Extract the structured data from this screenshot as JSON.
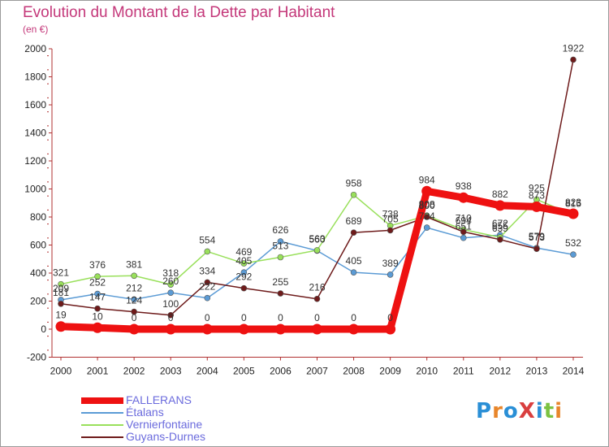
{
  "header": {
    "title": "Evolution du Montant de la Dette par Habitant",
    "unit": "(en €)"
  },
  "logo": {
    "text": "ProXiti",
    "colors": [
      "#2a8fd6",
      "#e8862b",
      "#2a8fd6",
      "#d93f3f",
      "#2a8fd6",
      "#7cc242",
      "#e8862b"
    ]
  },
  "chart_data": {
    "type": "line",
    "x": [
      2000,
      2001,
      2002,
      2003,
      2004,
      2005,
      2006,
      2007,
      2008,
      2009,
      2010,
      2011,
      2012,
      2013,
      2014
    ],
    "ylim": [
      -200,
      2000
    ],
    "yticks": [
      -200,
      0,
      200,
      400,
      600,
      800,
      1000,
      1200,
      1400,
      1600,
      1800,
      2000
    ],
    "grid": false,
    "legend_position": "bottom-left",
    "series": [
      {
        "name": "FALLERANS",
        "color": "#ee1111",
        "values": [
          19,
          10,
          0,
          0,
          0,
          0,
          0,
          0,
          0,
          0,
          984,
          938,
          882,
          873,
          823
        ],
        "labels": [
          "19",
          "10",
          "0",
          "0",
          "0",
          "0",
          "0",
          "0",
          "0",
          "0",
          "984",
          "938",
          "882",
          "873",
          "823"
        ]
      },
      {
        "name": "Étalans",
        "color": "#5b9bd5",
        "values": [
          209,
          252,
          212,
          260,
          222,
          405,
          626,
          560,
          405,
          389,
          724,
          651,
          672,
          579,
          532
        ],
        "labels": [
          "209",
          "252",
          "212",
          "260",
          "222",
          "405",
          "626",
          "560",
          "405",
          "389",
          "724",
          "651",
          "672",
          "579",
          "532"
        ]
      },
      {
        "name": "Vernierfontaine",
        "color": "#99e05b",
        "values": [
          321,
          376,
          381,
          318,
          554,
          469,
          513,
          563,
          958,
          738,
          808,
          710,
          655,
          925,
          815
        ],
        "labels": [
          "321",
          "376",
          "381",
          "318",
          "554",
          "469",
          "513",
          "563",
          "958",
          "738",
          "808",
          "710",
          "655",
          "925",
          "815"
        ]
      },
      {
        "name": "Guyans-Durnes",
        "color": "#6e1b1b",
        "values": [
          181,
          147,
          124,
          100,
          334,
          292,
          255,
          216,
          689,
          705,
          800,
          694,
          639,
          573,
          1922
        ],
        "labels": [
          "181",
          "147",
          "124",
          "100",
          "334",
          "292",
          "255",
          "216",
          "689",
          "705",
          "800",
          "694",
          "639",
          "573",
          "1922"
        ]
      }
    ]
  }
}
